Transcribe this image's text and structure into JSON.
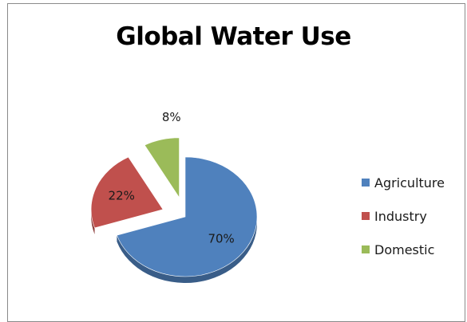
{
  "chart_data": {
    "type": "pie",
    "title": "Global Water Use",
    "categories": [
      "Agriculture",
      "Industry",
      "Domestic"
    ],
    "values": [
      70,
      22,
      8
    ],
    "labels": [
      "70%",
      "22%",
      "8%"
    ],
    "exploded": [
      false,
      true,
      true
    ],
    "colors": [
      "#4f81bd",
      "#c0504d",
      "#9bbb59"
    ],
    "legend_position": "right",
    "start_angle_deg": 0,
    "direction": "clockwise",
    "pie_style": "3d-tilted"
  }
}
